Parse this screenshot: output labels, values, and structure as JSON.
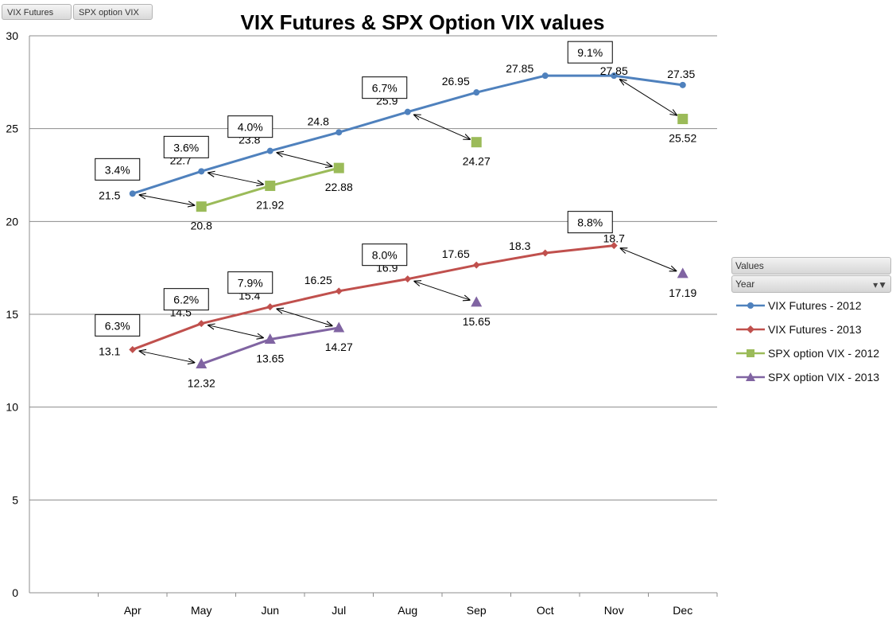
{
  "field_buttons": [
    "VIX Futures",
    "SPX option VIX"
  ],
  "legend": {
    "header": "Values",
    "filter_label": "Year",
    "items": [
      "VIX Futures - 2012",
      "VIX Futures - 2013",
      "SPX option VIX - 2012",
      "SPX option VIX - 2013"
    ]
  },
  "chart_data": {
    "type": "line",
    "title": "VIX Futures & SPX Option VIX values",
    "xlabel": "",
    "ylabel": "",
    "categories": [
      "Apr",
      "May",
      "Jun",
      "Jul",
      "Aug",
      "Sep",
      "Oct",
      "Nov",
      "Dec"
    ],
    "ylim": [
      0,
      30
    ],
    "yticks": [
      0,
      5,
      10,
      15,
      20,
      25,
      30
    ],
    "grid": true,
    "legend_position": "right",
    "series": [
      {
        "name": "VIX Futures - 2012",
        "color": "#4F81BD",
        "marker": "circle",
        "values": [
          21.5,
          22.7,
          23.8,
          24.8,
          25.9,
          26.95,
          27.85,
          27.85,
          27.35
        ]
      },
      {
        "name": "VIX Futures - 2013",
        "color": "#C0504D",
        "marker": "diamond",
        "values": [
          13.1,
          14.5,
          15.4,
          16.25,
          16.9,
          17.65,
          18.3,
          18.7,
          null
        ]
      },
      {
        "name": "SPX option VIX - 2012",
        "color": "#9BBB59",
        "marker": "square",
        "values": [
          null,
          20.8,
          21.92,
          22.88,
          null,
          24.27,
          null,
          null,
          25.52
        ]
      },
      {
        "name": "SPX option VIX - 2013",
        "color": "#8064A2",
        "marker": "triangle",
        "values": [
          null,
          12.32,
          13.65,
          14.27,
          null,
          15.65,
          null,
          null,
          17.19
        ]
      }
    ],
    "data_labels": {
      "VIX Futures - 2012": [
        "21.5",
        "22.7",
        "23.8",
        "24.8",
        "25.9",
        "26.95",
        "27.85",
        "27.85",
        "27.35"
      ],
      "VIX Futures - 2013": [
        "13.1",
        "14.5",
        "15.4",
        "16.25",
        "16.9",
        "17.65",
        "18.3",
        "18.7",
        ""
      ],
      "SPX option VIX - 2012": [
        "",
        "20.8",
        "21.92",
        "22.88",
        "",
        "24.27",
        "",
        "",
        "25.52"
      ],
      "SPX option VIX - 2013": [
        "",
        "12.32",
        "13.65",
        "14.27",
        "",
        "15.65",
        "",
        "",
        "17.19"
      ]
    },
    "annotations": [
      {
        "text": "3.4%",
        "category": "Apr",
        "series": "VIX Futures - 2012"
      },
      {
        "text": "3.6%",
        "category": "May",
        "series": "VIX Futures - 2012"
      },
      {
        "text": "4.0%",
        "category": "Jun",
        "series": "VIX Futures - 2012"
      },
      {
        "text": "6.7%",
        "category": "Aug",
        "series": "VIX Futures - 2012"
      },
      {
        "text": "9.1%",
        "category": "Nov",
        "series": "VIX Futures - 2012"
      },
      {
        "text": "6.3%",
        "category": "Apr",
        "series": "VIX Futures - 2013"
      },
      {
        "text": "6.2%",
        "category": "May",
        "series": "VIX Futures - 2013"
      },
      {
        "text": "7.9%",
        "category": "Jun",
        "series": "VIX Futures - 2013"
      },
      {
        "text": "8.0%",
        "category": "Aug",
        "series": "VIX Futures - 2013"
      },
      {
        "text": "8.8%",
        "category": "Nov",
        "series": "VIX Futures - 2013"
      }
    ],
    "arrows": [
      {
        "from": [
          "VIX Futures - 2012",
          "Apr"
        ],
        "to": [
          "SPX option VIX - 2012",
          "May"
        ]
      },
      {
        "from": [
          "VIX Futures - 2012",
          "May"
        ],
        "to": [
          "SPX option VIX - 2012",
          "Jun"
        ]
      },
      {
        "from": [
          "VIX Futures - 2012",
          "Jun"
        ],
        "to": [
          "SPX option VIX - 2012",
          "Jul"
        ]
      },
      {
        "from": [
          "VIX Futures - 2012",
          "Aug"
        ],
        "to": [
          "SPX option VIX - 2012",
          "Sep"
        ]
      },
      {
        "from": [
          "VIX Futures - 2012",
          "Nov"
        ],
        "to": [
          "SPX option VIX - 2012",
          "Dec"
        ]
      },
      {
        "from": [
          "VIX Futures - 2013",
          "Apr"
        ],
        "to": [
          "SPX option VIX - 2013",
          "May"
        ]
      },
      {
        "from": [
          "VIX Futures - 2013",
          "May"
        ],
        "to": [
          "SPX option VIX - 2013",
          "Jun"
        ]
      },
      {
        "from": [
          "VIX Futures - 2013",
          "Jun"
        ],
        "to": [
          "SPX option VIX - 2013",
          "Jul"
        ]
      },
      {
        "from": [
          "VIX Futures - 2013",
          "Aug"
        ],
        "to": [
          "SPX option VIX - 2013",
          "Sep"
        ]
      },
      {
        "from": [
          "VIX Futures - 2013",
          "Nov"
        ],
        "to": [
          "SPX option VIX - 2013",
          "Dec"
        ]
      }
    ]
  }
}
